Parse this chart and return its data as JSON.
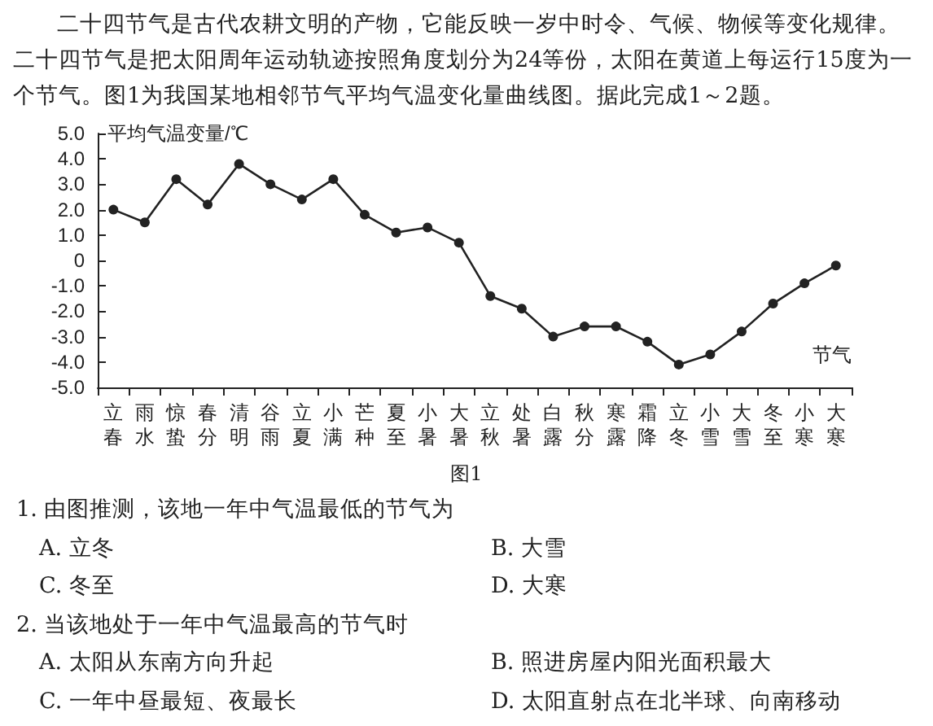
{
  "chart_data": {
    "type": "line",
    "ylabel": "平均气温变量/℃",
    "xlabel": "节气",
    "categories": [
      "立春",
      "雨水",
      "惊蛰",
      "春分",
      "清明",
      "谷雨",
      "立夏",
      "小满",
      "芒种",
      "夏至",
      "小暑",
      "大暑",
      "立秋",
      "处暑",
      "白露",
      "秋分",
      "寒露",
      "霜降",
      "立冬",
      "小雪",
      "大雪",
      "冬至",
      "小寒",
      "大寒"
    ],
    "series": [
      {
        "color": "#222222",
        "values": [
          2.0,
          1.5,
          3.2,
          2.2,
          3.8,
          3.0,
          2.4,
          3.2,
          1.8,
          1.1,
          1.3,
          0.7,
          -1.4,
          -1.9,
          -3.0,
          -2.6,
          -2.6,
          -3.2,
          -4.1,
          -3.7,
          -2.8,
          -1.7,
          -0.9,
          -0.2
        ]
      }
    ],
    "ylim": [
      -5,
      5
    ],
    "yticks": [
      {
        "value": -5,
        "label": "-5.0"
      },
      {
        "value": -4,
        "label": "-4.0"
      },
      {
        "value": -3,
        "label": "-3.0"
      },
      {
        "value": -2,
        "label": "-2.0"
      },
      {
        "value": -1,
        "label": "-1.0"
      },
      0,
      {
        "value": 1,
        "label": "1.0"
      },
      {
        "value": 2,
        "label": "2.0"
      },
      {
        "value": 3,
        "label": "3.0"
      },
      {
        "value": 4,
        "label": "4.0"
      },
      {
        "value": 5,
        "label": "5.0"
      }
    ],
    "marker": "circle",
    "line_style": "solid",
    "annotations": [
      "二十四节气是古代农耕文明的产物，它能反映一岁中时令、气候、物候等变化规律。二十四节气是把太阳周年运动轨迹按照角度划分为24等份，太阳在黄道上每运行15度为一个节气。图1为我国某地相邻节气平均气温变化量曲线图。据此完成1～2题。",
      "图1",
      "1. 由图推测，该地一年中气温最低的节气为",
      "A. 立冬",
      "B. 大雪",
      "C. 冬至",
      "D. 大寒",
      "2. 当该地处于一年中气温最高的节气时",
      "A. 太阳从东南方向升起",
      "B. 照进房屋内阳光面积最大",
      "C. 一年中昼最短、夜最长",
      "D. 太阳直射点在北半球、向南移动"
    ]
  }
}
